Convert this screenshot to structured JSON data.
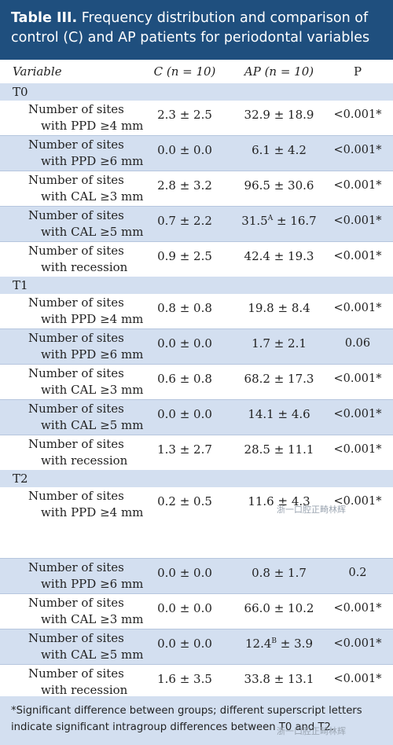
{
  "title": {
    "label": "Table III.",
    "text": "Frequency distribution and comparison of control (C) and AP patients for periodontal variables"
  },
  "header": {
    "variable": "Variable",
    "c": "C (n = 10)",
    "ap": "AP (n = 10)",
    "p": "P"
  },
  "sections": [
    {
      "name": "T0",
      "rows": [
        {
          "label1": "Number of sites",
          "label2": "with PPD ≥4 mm",
          "c": "2.3 ± 2.5",
          "ap": "32.9 ± 18.9",
          "p": "<0.001*"
        },
        {
          "label1": "Number of sites",
          "label2": "with PPD ≥6 mm",
          "c": "0.0 ± 0.0",
          "ap": "6.1 ± 4.2",
          "p": "<0.001*"
        },
        {
          "label1": "Number of sites",
          "label2": "with CAL ≥3 mm",
          "c": "2.8 ± 3.2",
          "ap": "96.5 ± 30.6",
          "p": "<0.001*"
        },
        {
          "label1": "Number of sites",
          "label2": "with CAL ≥5 mm",
          "c": "0.7 ± 2.2",
          "ap_pre": "31.5",
          "ap_sup": "A",
          "ap_post": " ± 16.7",
          "p": "<0.001*"
        },
        {
          "label1": "Number of sites",
          "label2": "with recession",
          "c": "0.9 ± 2.5",
          "ap": "42.4 ± 19.3",
          "p": "<0.001*"
        }
      ]
    },
    {
      "name": "T1",
      "rows": [
        {
          "label1": "Number of sites",
          "label2": "with PPD ≥4 mm",
          "c": "0.8 ± 0.8",
          "ap": "19.8 ± 8.4",
          "p": "<0.001*"
        },
        {
          "label1": "Number of sites",
          "label2": "with PPD ≥6 mm",
          "c": "0.0 ± 0.0",
          "ap": "1.7 ± 2.1",
          "p": "0.06"
        },
        {
          "label1": "Number of sites",
          "label2": "with CAL ≥3 mm",
          "c": "0.6 ± 0.8",
          "ap": "68.2 ± 17.3",
          "p": "<0.001*"
        },
        {
          "label1": "Number of sites",
          "label2": "with CAL ≥5 mm",
          "c": "0.0 ± 0.0",
          "ap": "14.1 ± 4.6",
          "p": "<0.001*"
        },
        {
          "label1": "Number of sites",
          "label2": "with recession",
          "c": "1.3 ± 2.7",
          "ap": "28.5 ± 11.1",
          "p": "<0.001*"
        }
      ]
    },
    {
      "name": "T2",
      "rows": [
        {
          "label1": "Number of sites",
          "label2": "with PPD ≥4 mm",
          "c": "0.2 ± 0.5",
          "ap": "11.6 ± 4.3",
          "p": "<0.001*"
        },
        {
          "label1": "Number of sites",
          "label2": "with PPD ≥6 mm",
          "c": "0.0 ± 0.0",
          "ap": "0.8 ± 1.7",
          "p": "0.2"
        },
        {
          "label1": "Number of sites",
          "label2": "with CAL ≥3 mm",
          "c": "0.0 ± 0.0",
          "ap": "66.0 ± 10.2",
          "p": "<0.001*"
        },
        {
          "label1": "Number of sites",
          "label2": "with CAL ≥5 mm",
          "c": "0.0 ± 0.0",
          "ap_pre": "12.4",
          "ap_sup": "B",
          "ap_post": " ± 3.9",
          "p": "<0.001*"
        },
        {
          "label1": "Number of sites",
          "label2": "with recession",
          "c": "1.6 ± 3.5",
          "ap": "33.8 ± 13.1",
          "p": "<0.001*"
        }
      ]
    }
  ],
  "footnote": "*Significant difference between groups; different superscript letters indicate significant intragroup differences between T0 and T2.",
  "watermark": "浙一口腔正畸林辉",
  "colors": {
    "title_bg": "#1f4f7e",
    "band_bg": "#d3dff0"
  }
}
